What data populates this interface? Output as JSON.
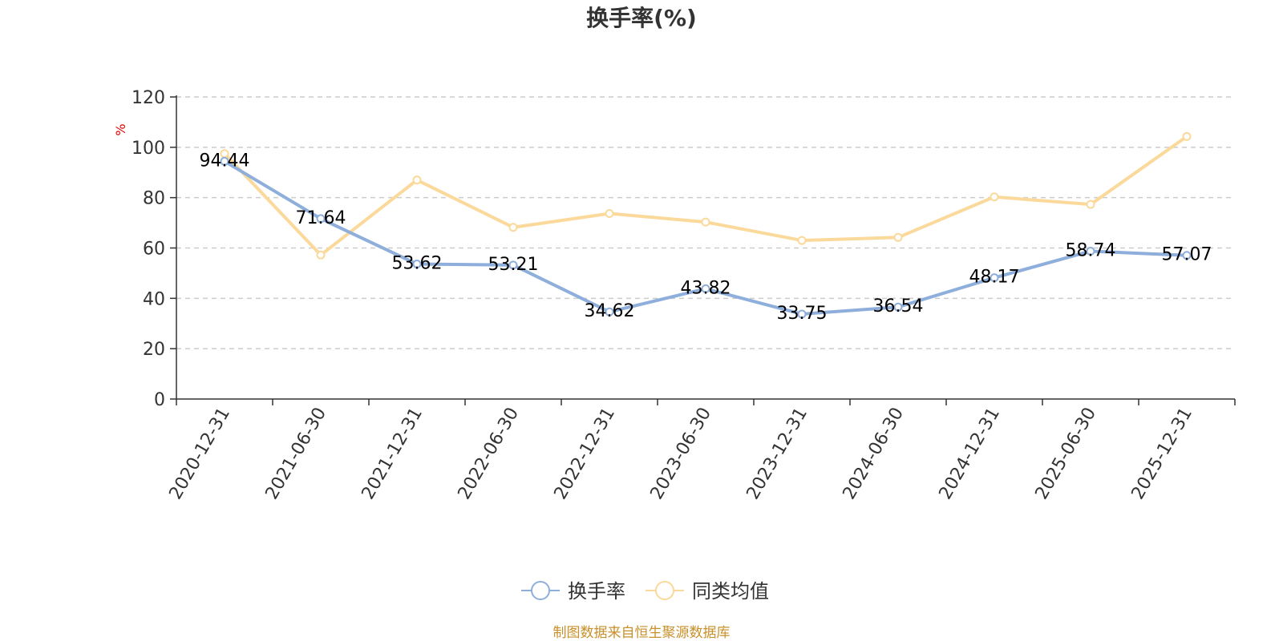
{
  "chart_data": {
    "type": "line",
    "title": "换手率(%)",
    "unit_label": "%",
    "categories": [
      "2020-12-31",
      "2021-06-30",
      "2021-12-31",
      "2022-06-30",
      "2022-12-31",
      "2023-06-30",
      "2023-12-31",
      "2024-06-30",
      "2024-12-31",
      "2025-06-30",
      "2025-12-31"
    ],
    "ylim": [
      0,
      120
    ],
    "yticks": [
      0,
      20,
      40,
      60,
      80,
      100,
      120
    ],
    "grid": true,
    "legend_position": "bottom-center",
    "series": [
      {
        "name": "换手率",
        "color": "#8eaedb",
        "values": [
          94.44,
          71.64,
          53.62,
          53.21,
          34.62,
          43.82,
          33.75,
          36.54,
          48.17,
          58.74,
          57.07
        ],
        "labels": [
          "94.44",
          "71.64",
          "53.62",
          "53.21",
          "34.62",
          "43.82",
          "33.75",
          "36.54",
          "48.17",
          "58.74",
          "57.07"
        ]
      },
      {
        "name": "同类均值",
        "color": "#fad99a",
        "values": [
          97.5,
          57.2,
          87.0,
          68.2,
          73.7,
          70.3,
          63.0,
          64.2,
          80.3,
          77.3,
          104.3
        ]
      }
    ],
    "source": "制图数据来自恒生聚源数据库"
  }
}
